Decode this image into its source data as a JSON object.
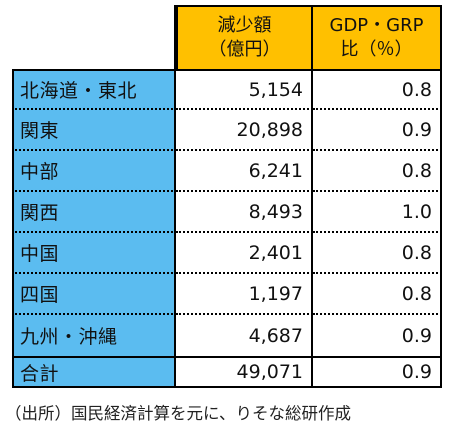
{
  "table": {
    "header": {
      "col1_line1": "減少額",
      "col1_line2": "（億円）",
      "col2_line1": "GDP・GRP",
      "col2_line2": "比（％）"
    },
    "rows": [
      {
        "region": "北海道・東北",
        "decrease": "5,154",
        "ratio": "0.8"
      },
      {
        "region": "関東",
        "decrease": "20,898",
        "ratio": "0.9"
      },
      {
        "region": "中部",
        "decrease": "6,241",
        "ratio": "0.8"
      },
      {
        "region": "関西",
        "decrease": "8,493",
        "ratio": "1.0"
      },
      {
        "region": "中国",
        "decrease": "2,401",
        "ratio": "0.8"
      },
      {
        "region": "四国",
        "decrease": "1,197",
        "ratio": "0.8"
      },
      {
        "region": "九州・沖縄",
        "decrease": "4,687",
        "ratio": "0.9"
      }
    ],
    "total": {
      "region": "合計",
      "decrease": "49,071",
      "ratio": "0.9"
    }
  },
  "source": "（出所）国民経済計算を元に、りそな総研作成",
  "colors": {
    "header_bg": "#ffc000",
    "label_bg": "#5bbcf0"
  }
}
